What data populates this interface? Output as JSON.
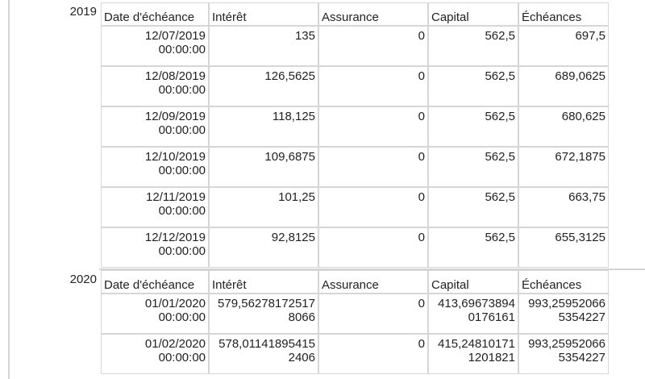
{
  "groups": [
    {
      "year": "2019",
      "headers": [
        "Date d'échéance",
        "Intérêt",
        "Assurance",
        "Capital",
        "Échéances"
      ],
      "rows": [
        [
          "12/07/2019\n00:00:00",
          "135",
          "0",
          "562,5",
          "697,5"
        ],
        [
          "12/08/2019\n00:00:00",
          "126,5625",
          "0",
          "562,5",
          "689,0625"
        ],
        [
          "12/09/2019\n00:00:00",
          "118,125",
          "0",
          "562,5",
          "680,625"
        ],
        [
          "12/10/2019\n00:00:00",
          "109,6875",
          "0",
          "562,5",
          "672,1875"
        ],
        [
          "12/11/2019\n00:00:00",
          "101,25",
          "0",
          "562,5",
          "663,75"
        ],
        [
          "12/12/2019\n00:00:00",
          "92,8125",
          "0",
          "562,5",
          "655,3125"
        ]
      ]
    },
    {
      "year": "2020",
      "headers": [
        "Date d'échéance",
        "Intérêt",
        "Assurance",
        "Capital",
        "Échéances"
      ],
      "rows": [
        [
          "01/01/2020\n00:00:00",
          "579,56278172517\n8066",
          "0",
          "413,69673894\n0176161",
          "993,25952066\n5354227"
        ],
        [
          "01/02/2020\n00:00:00",
          "578,01141895415\n2406",
          "0",
          "415,24810171\n1201821",
          "993,25952066\n5354227"
        ]
      ]
    }
  ]
}
